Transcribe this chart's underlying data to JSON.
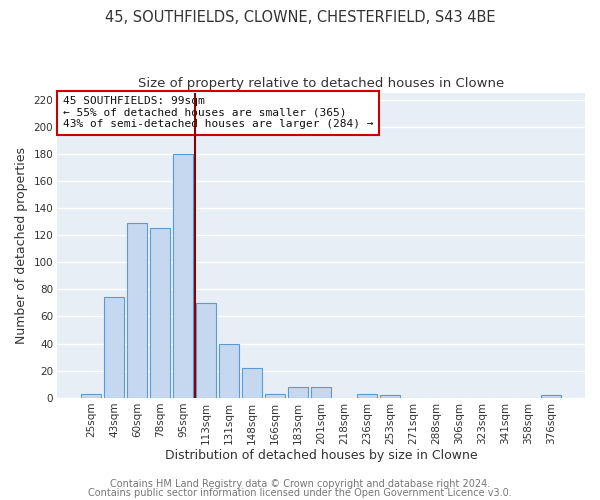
{
  "title": "45, SOUTHFIELDS, CLOWNE, CHESTERFIELD, S43 4BE",
  "subtitle": "Size of property relative to detached houses in Clowne",
  "xlabel": "Distribution of detached houses by size in Clowne",
  "ylabel": "Number of detached properties",
  "bar_labels": [
    "25sqm",
    "43sqm",
    "60sqm",
    "78sqm",
    "95sqm",
    "113sqm",
    "131sqm",
    "148sqm",
    "166sqm",
    "183sqm",
    "201sqm",
    "218sqm",
    "236sqm",
    "253sqm",
    "271sqm",
    "288sqm",
    "306sqm",
    "323sqm",
    "341sqm",
    "358sqm",
    "376sqm"
  ],
  "bar_values": [
    3,
    74,
    129,
    125,
    180,
    70,
    40,
    22,
    3,
    8,
    8,
    0,
    3,
    2,
    0,
    0,
    0,
    0,
    0,
    0,
    2
  ],
  "bar_color": "#c5d8ef",
  "bar_edge_color": "#5b9bd5",
  "vline_x": 4.5,
  "vline_color": "#8b0000",
  "ylim": [
    0,
    225
  ],
  "yticks": [
    0,
    20,
    40,
    60,
    80,
    100,
    120,
    140,
    160,
    180,
    200,
    220
  ],
  "annotation_title": "45 SOUTHFIELDS: 99sqm",
  "annotation_line1": "← 55% of detached houses are smaller (365)",
  "annotation_line2": "43% of semi-detached houses are larger (284) →",
  "annotation_box_color": "#ffffff",
  "annotation_box_edge": "#cc0000",
  "footer_line1": "Contains HM Land Registry data © Crown copyright and database right 2024.",
  "footer_line2": "Contains public sector information licensed under the Open Government Licence v3.0.",
  "fig_bg_color": "#ffffff",
  "plot_bg_color": "#e8eef5",
  "grid_color": "#ffffff",
  "title_fontsize": 10.5,
  "subtitle_fontsize": 9.5,
  "axis_label_fontsize": 9,
  "tick_fontsize": 7.5,
  "annotation_fontsize": 8,
  "footer_fontsize": 7
}
